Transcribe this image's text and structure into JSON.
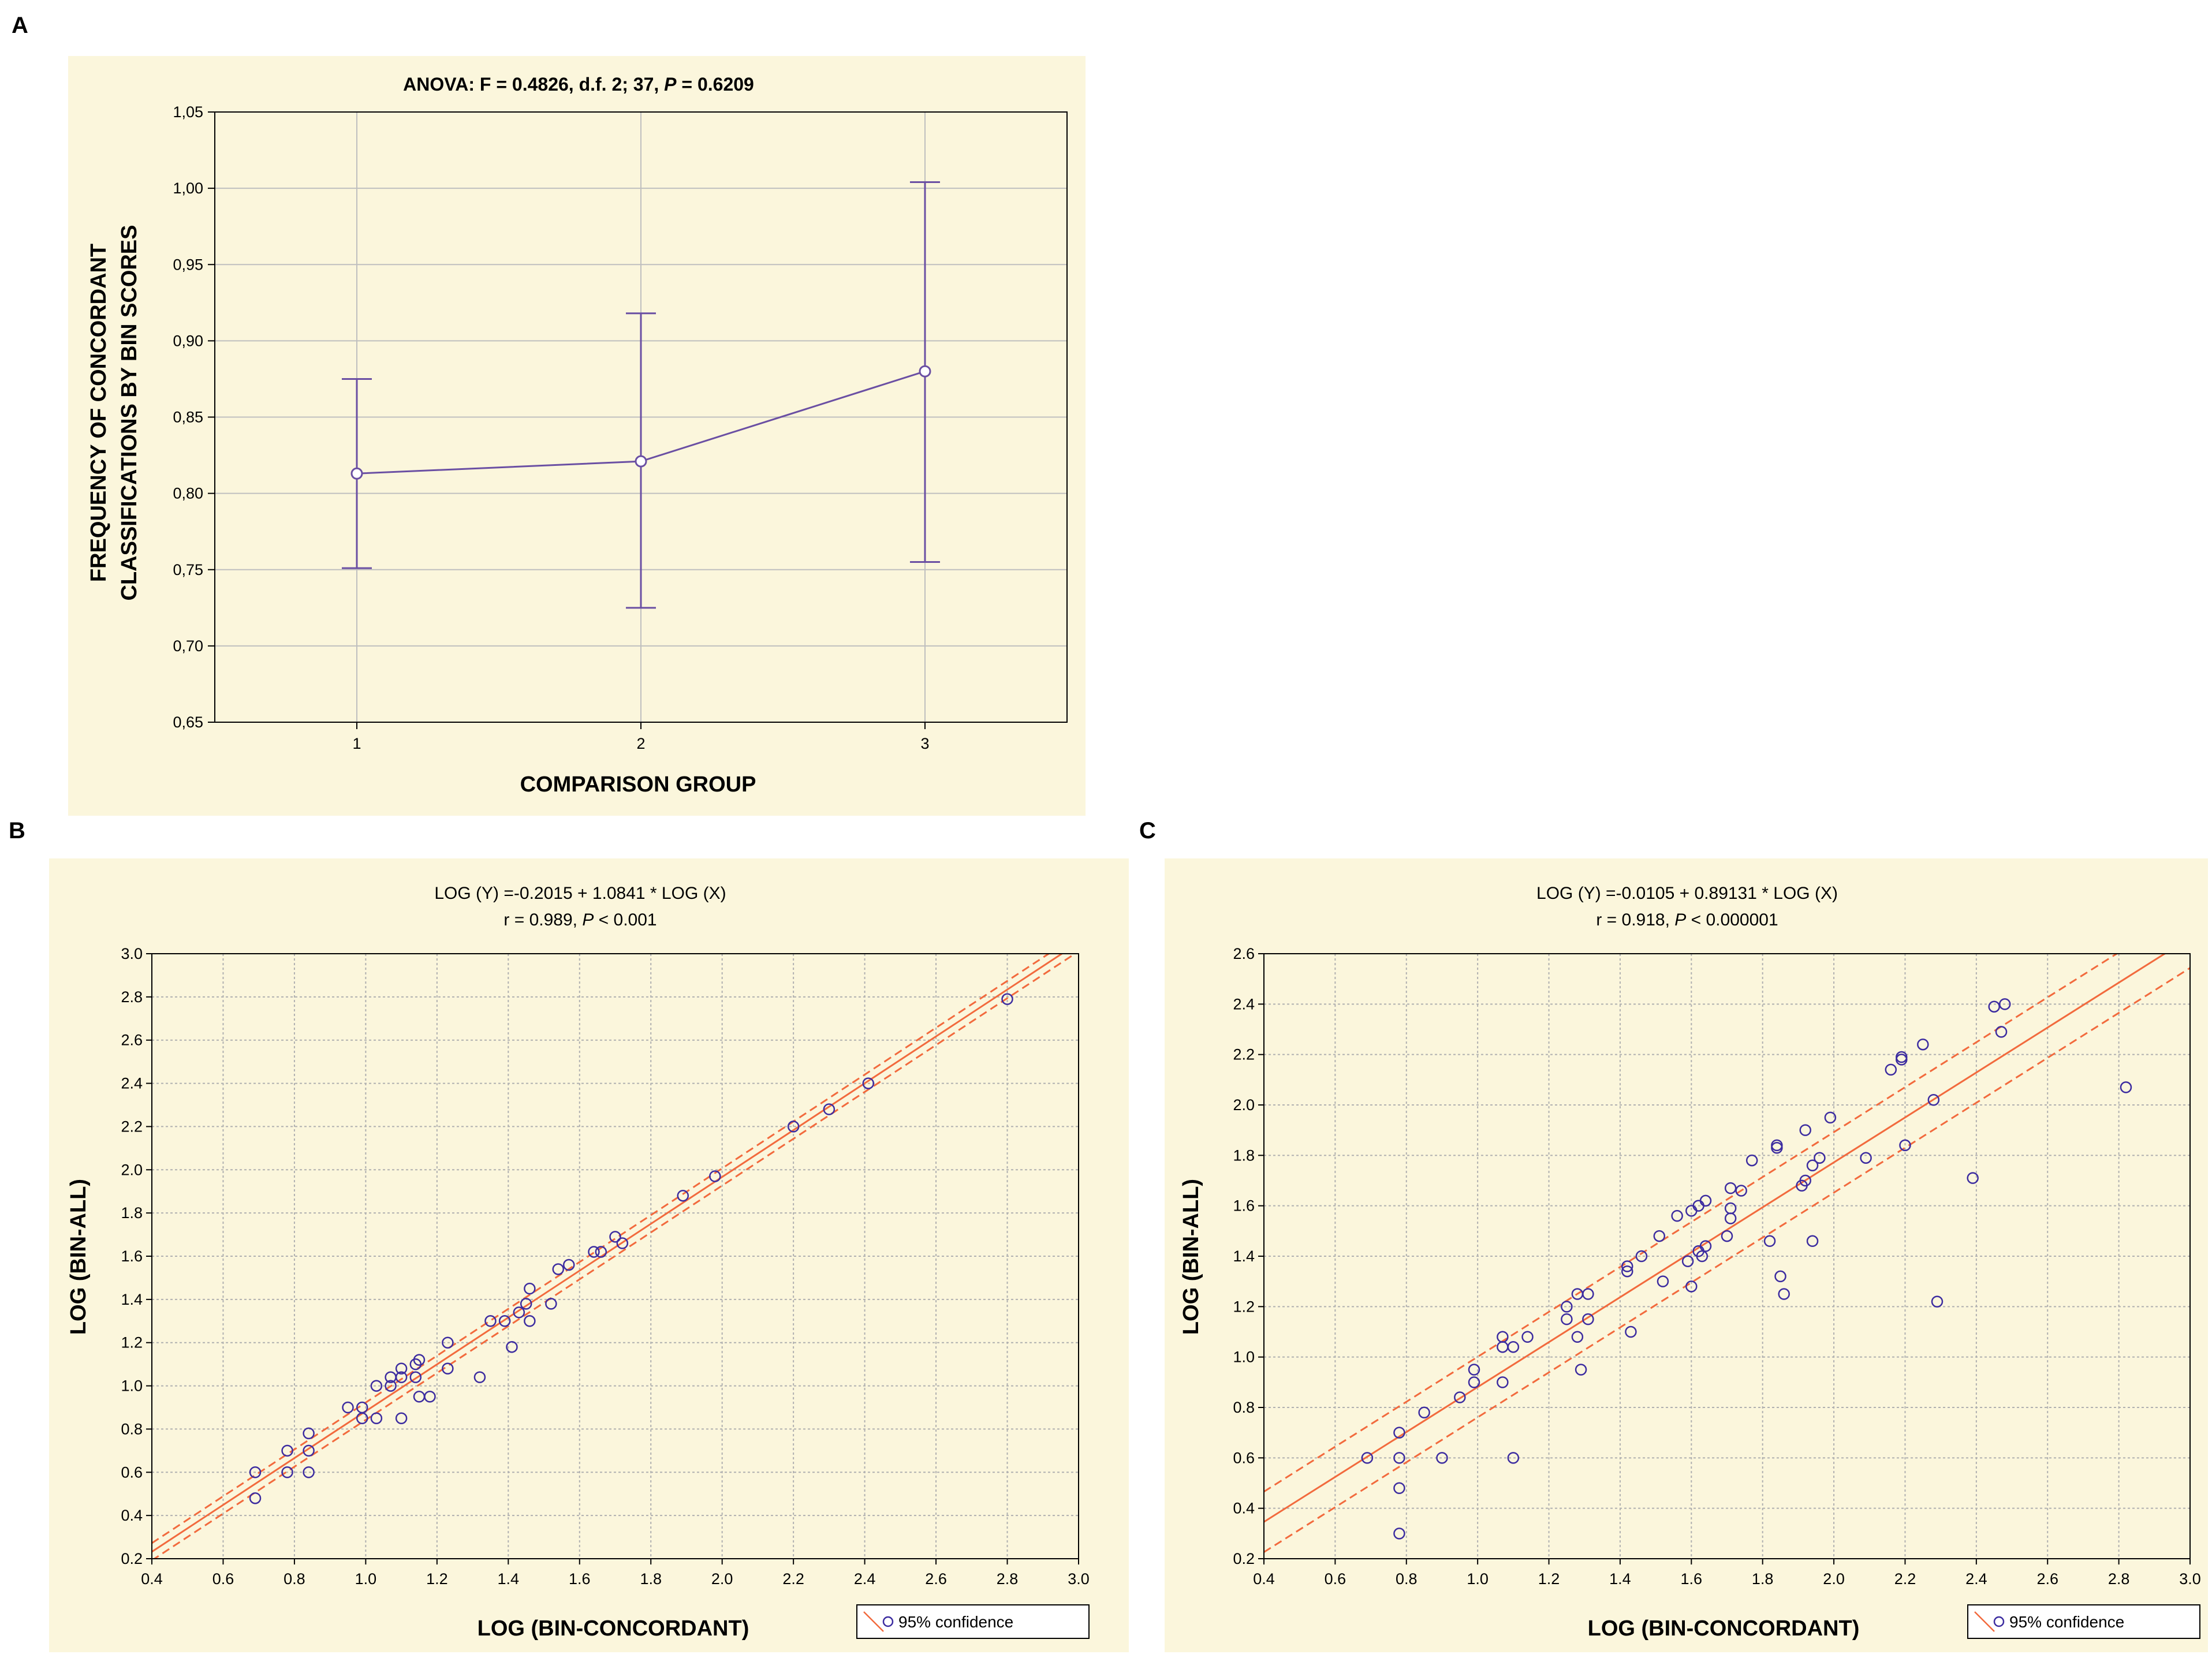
{
  "chart_data": [
    {
      "panel": "A",
      "type": "line",
      "title": "ANOVA: F = 0.4826, d.f. 2; 37, P = 0.6209",
      "title_parts": [
        "ANOVA: F = 0.4826, d.f. 2; 37, ",
        "P",
        " = 0.6209"
      ],
      "xlabel": "COMPARISON GROUP",
      "ylabel": [
        "FREQUENCY OF CONCORDANT",
        "CLASSIFICATIONS BY BIN SCORES"
      ],
      "categories": [
        "1",
        "2",
        "3"
      ],
      "x": [
        1,
        2,
        3
      ],
      "xlim": [
        0.5,
        3.5
      ],
      "ylim": [
        0.65,
        1.05
      ],
      "yticks": [
        0.65,
        0.7,
        0.75,
        0.8,
        0.85,
        0.9,
        0.95,
        1.0,
        1.05
      ],
      "ytick_labels": [
        "0,65",
        "0,70",
        "0,75",
        "0,80",
        "0,85",
        "0,90",
        "0,95",
        "1,00",
        "1,05"
      ],
      "series": [
        {
          "name": "mean",
          "values": [
            0.813,
            0.821,
            0.88
          ],
          "err_low": [
            0.751,
            0.725,
            0.755
          ],
          "err_high": [
            0.875,
            0.918,
            1.004
          ]
        }
      ],
      "grid": true,
      "colors": {
        "series": "#6a4fa3",
        "background": "#fbf6dc",
        "grid": "#bfbfbf"
      }
    },
    {
      "panel": "B",
      "type": "scatter",
      "title_lines": [
        "LOG (Y) =-0.2015 + 1.0841 * LOG (X)",
        "r = 0.989, P < 0.001"
      ],
      "title_line2_parts": [
        "r = 0.989, ",
        "P",
        " < 0.001"
      ],
      "xlabel": "LOG (BIN-CONCORDANT)",
      "ylabel": "LOG (BIN-ALL)",
      "xlim": [
        0.4,
        3.0
      ],
      "ylim": [
        0.2,
        3.0
      ],
      "xticks": [
        0.4,
        0.6,
        0.8,
        1.0,
        1.2,
        1.4,
        1.6,
        1.8,
        2.0,
        2.2,
        2.4,
        2.6,
        2.8,
        3.0
      ],
      "yticks": [
        0.2,
        0.4,
        0.6,
        0.8,
        1.0,
        1.2,
        1.4,
        1.6,
        1.8,
        2.0,
        2.2,
        2.4,
        2.6,
        2.8,
        3.0
      ],
      "xtick_labels": [
        "0.4",
        "0.6",
        "0.8",
        "1.0",
        "1.2",
        "1.4",
        "1.6",
        "1.8",
        "2.0",
        "2.2",
        "2.4",
        "2.6",
        "2.8",
        "3.0"
      ],
      "ytick_labels": [
        "0.2",
        "0.4",
        "0.6",
        "0.8",
        "1.0",
        "1.2",
        "1.4",
        "1.6",
        "1.8",
        "2.0",
        "2.2",
        "2.4",
        "2.6",
        "2.8",
        "3.0"
      ],
      "fit": {
        "intercept": -0.2015,
        "slope": 1.0841,
        "ci_offset": 0.04
      },
      "legend": "95% confidence",
      "points": [
        [
          0.69,
          0.48
        ],
        [
          0.69,
          0.6
        ],
        [
          0.78,
          0.6
        ],
        [
          0.78,
          0.7
        ],
        [
          0.84,
          0.6
        ],
        [
          0.84,
          0.7
        ],
        [
          0.84,
          0.78
        ],
        [
          0.95,
          0.9
        ],
        [
          0.99,
          0.85
        ],
        [
          0.99,
          0.9
        ],
        [
          1.03,
          0.85
        ],
        [
          1.03,
          1.0
        ],
        [
          1.07,
          1.0
        ],
        [
          1.07,
          1.04
        ],
        [
          1.1,
          0.85
        ],
        [
          1.1,
          1.04
        ],
        [
          1.1,
          1.08
        ],
        [
          1.14,
          1.04
        ],
        [
          1.14,
          1.1
        ],
        [
          1.15,
          0.95
        ],
        [
          1.15,
          1.12
        ],
        [
          1.18,
          0.95
        ],
        [
          1.23,
          1.08
        ],
        [
          1.23,
          1.2
        ],
        [
          1.32,
          1.04
        ],
        [
          1.35,
          1.3
        ],
        [
          1.39,
          1.3
        ],
        [
          1.41,
          1.18
        ],
        [
          1.43,
          1.34
        ],
        [
          1.45,
          1.38
        ],
        [
          1.46,
          1.3
        ],
        [
          1.46,
          1.45
        ],
        [
          1.52,
          1.38
        ],
        [
          1.54,
          1.54
        ],
        [
          1.57,
          1.56
        ],
        [
          1.64,
          1.62
        ],
        [
          1.66,
          1.62
        ],
        [
          1.7,
          1.69
        ],
        [
          1.72,
          1.66
        ],
        [
          1.89,
          1.88
        ],
        [
          1.98,
          1.97
        ],
        [
          2.2,
          2.2
        ],
        [
          2.3,
          2.28
        ],
        [
          2.41,
          2.4
        ],
        [
          2.8,
          2.79
        ]
      ],
      "colors": {
        "points": "#3c2ca0",
        "fit": "#f26a3d",
        "background": "#fbf6dc",
        "grid": "#b0b0b0"
      }
    },
    {
      "panel": "C",
      "type": "scatter",
      "title_lines": [
        "LOG (Y) =-0.0105 + 0.89131 * LOG (X)",
        "r = 0.918, P < 0.000001"
      ],
      "title_line2_parts": [
        "r = 0.918, ",
        "P",
        " < 0.000001"
      ],
      "xlabel": "LOG (BIN-CONCORDANT)",
      "ylabel": "LOG (BIN-ALL)",
      "xlim": [
        0.4,
        3.0
      ],
      "ylim": [
        0.2,
        2.6
      ],
      "xticks": [
        0.4,
        0.6,
        0.8,
        1.0,
        1.2,
        1.4,
        1.6,
        1.8,
        2.0,
        2.2,
        2.4,
        2.6,
        2.8,
        3.0
      ],
      "yticks": [
        0.2,
        0.4,
        0.6,
        0.8,
        1.0,
        1.2,
        1.4,
        1.6,
        1.8,
        2.0,
        2.2,
        2.4,
        2.6
      ],
      "xtick_labels": [
        "0.4",
        "0.6",
        "0.8",
        "1.0",
        "1.2",
        "1.4",
        "1.6",
        "1.8",
        "2.0",
        "2.2",
        "2.4",
        "2.6",
        "2.8",
        "3.0"
      ],
      "ytick_labels": [
        "0.2",
        "0.4",
        "0.6",
        "0.8",
        "1.0",
        "1.2",
        "1.4",
        "1.6",
        "1.8",
        "2.0",
        "2.2",
        "2.4",
        "2.6"
      ],
      "fit": {
        "intercept": -0.0105,
        "slope": 0.89131,
        "ci_offset": 0.12
      },
      "legend": "95% confidence",
      "points": [
        [
          0.69,
          0.6
        ],
        [
          0.78,
          0.3
        ],
        [
          0.78,
          0.48
        ],
        [
          0.78,
          0.6
        ],
        [
          0.78,
          0.7
        ],
        [
          0.85,
          0.78
        ],
        [
          0.9,
          0.6
        ],
        [
          0.95,
          0.84
        ],
        [
          0.99,
          0.9
        ],
        [
          0.99,
          0.95
        ],
        [
          1.07,
          0.9
        ],
        [
          1.07,
          1.04
        ],
        [
          1.07,
          1.08
        ],
        [
          1.1,
          0.6
        ],
        [
          1.1,
          1.04
        ],
        [
          1.14,
          1.08
        ],
        [
          1.25,
          1.15
        ],
        [
          1.25,
          1.2
        ],
        [
          1.28,
          1.08
        ],
        [
          1.28,
          1.25
        ],
        [
          1.29,
          0.95
        ],
        [
          1.31,
          1.15
        ],
        [
          1.31,
          1.25
        ],
        [
          1.43,
          1.1
        ],
        [
          1.42,
          1.34
        ],
        [
          1.42,
          1.36
        ],
        [
          1.46,
          1.4
        ],
        [
          1.51,
          1.48
        ],
        [
          1.52,
          1.3
        ],
        [
          1.56,
          1.56
        ],
        [
          1.59,
          1.38
        ],
        [
          1.6,
          1.28
        ],
        [
          1.6,
          1.58
        ],
        [
          1.62,
          1.42
        ],
        [
          1.62,
          1.6
        ],
        [
          1.63,
          1.4
        ],
        [
          1.64,
          1.44
        ],
        [
          1.64,
          1.62
        ],
        [
          1.7,
          1.48
        ],
        [
          1.71,
          1.55
        ],
        [
          1.71,
          1.59
        ],
        [
          1.71,
          1.67
        ],
        [
          1.74,
          1.66
        ],
        [
          1.77,
          1.78
        ],
        [
          1.82,
          1.46
        ],
        [
          1.84,
          1.83
        ],
        [
          1.84,
          1.84
        ],
        [
          1.85,
          1.32
        ],
        [
          1.86,
          1.25
        ],
        [
          1.91,
          1.68
        ],
        [
          1.92,
          1.7
        ],
        [
          1.92,
          1.9
        ],
        [
          1.94,
          1.46
        ],
        [
          1.94,
          1.76
        ],
        [
          1.96,
          1.79
        ],
        [
          1.99,
          1.95
        ],
        [
          2.09,
          1.79
        ],
        [
          2.16,
          2.14
        ],
        [
          2.19,
          2.18
        ],
        [
          2.19,
          2.19
        ],
        [
          2.2,
          1.84
        ],
        [
          2.25,
          2.24
        ],
        [
          2.28,
          2.02
        ],
        [
          2.29,
          1.22
        ],
        [
          2.39,
          1.71
        ],
        [
          2.45,
          2.39
        ],
        [
          2.47,
          2.29
        ],
        [
          2.48,
          2.4
        ],
        [
          2.82,
          2.07
        ]
      ],
      "colors": {
        "points": "#3c2ca0",
        "fit": "#f26a3d",
        "background": "#fbf6dc",
        "grid": "#b0b0b0"
      }
    }
  ]
}
